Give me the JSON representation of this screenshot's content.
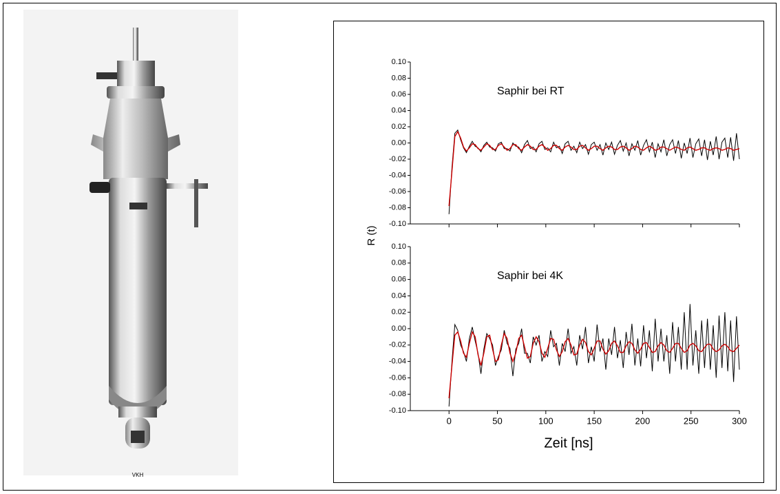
{
  "photo_caption": "VKH",
  "chart_data": [
    {
      "type": "line",
      "annotation": "Saphir bei RT",
      "ylabel": "R (t)",
      "xlim": [
        -40,
        300
      ],
      "xticks": [
        0,
        50,
        100,
        150,
        200,
        250,
        300
      ],
      "ylim": [
        -0.1,
        0.1
      ],
      "yticks": [
        {
          "value": -0.1,
          "label": "-0.10"
        },
        -0.08,
        -0.06,
        -0.04,
        -0.02,
        {
          "value": 0,
          "label": "0.00"
        },
        0.02,
        0.04,
        0.06,
        0.08,
        {
          "value": 0.1,
          "label": "0.10"
        }
      ],
      "x": [
        0,
        3,
        6,
        9,
        12,
        15,
        18,
        21,
        24,
        27,
        30,
        33,
        36,
        39,
        42,
        45,
        48,
        51,
        54,
        57,
        60,
        63,
        66,
        69,
        72,
        75,
        78,
        81,
        84,
        87,
        90,
        93,
        96,
        99,
        102,
        105,
        108,
        111,
        114,
        117,
        120,
        123,
        126,
        129,
        132,
        135,
        138,
        141,
        144,
        147,
        150,
        153,
        156,
        159,
        162,
        165,
        168,
        171,
        174,
        177,
        180,
        183,
        186,
        189,
        192,
        195,
        198,
        201,
        204,
        207,
        210,
        213,
        216,
        219,
        222,
        225,
        228,
        231,
        234,
        237,
        240,
        243,
        246,
        249,
        252,
        255,
        258,
        261,
        264,
        267,
        270,
        273,
        276,
        279,
        282,
        285,
        288,
        291,
        294,
        297,
        300
      ],
      "series": [
        {
          "color": "#000000",
          "values": [
            -0.088,
            -0.03,
            0.012,
            0.016,
            0.004,
            -0.006,
            -0.012,
            -0.004,
            0.002,
            -0.004,
            -0.006,
            -0.011,
            -0.003,
            0.001,
            -0.005,
            -0.006,
            -0.01,
            -0.001,
            0.001,
            -0.007,
            -0.007,
            -0.01,
            0.0,
            -0.004,
            -0.005,
            -0.012,
            -0.002,
            0.003,
            -0.007,
            -0.005,
            -0.011,
            -0.001,
            0.002,
            -0.008,
            -0.006,
            -0.011,
            0.001,
            -0.006,
            -0.004,
            -0.013,
            -0.001,
            0.002,
            -0.009,
            -0.004,
            -0.012,
            0.001,
            -0.007,
            -0.002,
            -0.014,
            -0.002,
            0.001,
            -0.009,
            -0.002,
            -0.015,
            0.0,
            -0.008,
            0.001,
            -0.014,
            -0.003,
            0.003,
            -0.01,
            0.0,
            -0.016,
            -0.001,
            -0.009,
            0.003,
            -0.015,
            -0.003,
            0.004,
            -0.011,
            0.001,
            -0.018,
            -0.001,
            -0.011,
            0.004,
            -0.016,
            -0.002,
            0.004,
            -0.013,
            0.003,
            -0.019,
            0.0,
            -0.013,
            0.006,
            -0.018,
            -0.001,
            0.005,
            -0.016,
            0.004,
            -0.021,
            0.002,
            -0.015,
            0.008,
            -0.02,
            0.001,
            0.006,
            -0.018,
            0.007,
            -0.022,
            0.012,
            -0.02
          ]
        },
        {
          "color": "#cc0000",
          "values": [
            -0.078,
            -0.035,
            0.008,
            0.014,
            0.006,
            -0.005,
            -0.01,
            -0.006,
            -0.001,
            -0.002,
            -0.007,
            -0.009,
            -0.005,
            -0.001,
            -0.003,
            -0.008,
            -0.008,
            -0.003,
            -0.001,
            -0.005,
            -0.009,
            -0.007,
            -0.002,
            -0.002,
            -0.007,
            -0.009,
            -0.005,
            -0.002,
            -0.004,
            -0.008,
            -0.008,
            -0.004,
            -0.002,
            -0.005,
            -0.009,
            -0.007,
            -0.003,
            -0.003,
            -0.007,
            -0.009,
            -0.005,
            -0.003,
            -0.005,
            -0.008,
            -0.008,
            -0.004,
            -0.003,
            -0.006,
            -0.009,
            -0.007,
            -0.004,
            -0.004,
            -0.007,
            -0.009,
            -0.006,
            -0.004,
            -0.005,
            -0.008,
            -0.008,
            -0.005,
            -0.004,
            -0.006,
            -0.009,
            -0.007,
            -0.004,
            -0.005,
            -0.008,
            -0.009,
            -0.006,
            -0.004,
            -0.006,
            -0.009,
            -0.008,
            -0.005,
            -0.005,
            -0.007,
            -0.009,
            -0.007,
            -0.005,
            -0.006,
            -0.008,
            -0.009,
            -0.006,
            -0.005,
            -0.007,
            -0.009,
            -0.008,
            -0.006,
            -0.006,
            -0.008,
            -0.009,
            -0.007,
            -0.006,
            -0.007,
            -0.009,
            -0.008,
            -0.006,
            -0.007,
            -0.009,
            -0.008,
            -0.007
          ]
        }
      ]
    },
    {
      "type": "line",
      "annotation": "Saphir bei 4K",
      "xlabel": "Zeit  [ns]",
      "xlim": [
        -40,
        300
      ],
      "xticks": [
        0,
        50,
        100,
        150,
        200,
        250,
        300
      ],
      "ylim": [
        -0.1,
        0.1
      ],
      "yticks": [
        {
          "value": -0.1,
          "label": "-0.10"
        },
        -0.08,
        -0.06,
        -0.04,
        -0.02,
        {
          "value": 0,
          "label": "0.00"
        },
        0.02,
        0.04,
        0.06,
        0.08,
        {
          "value": 0.1,
          "label": "0.10"
        }
      ],
      "x": [
        0,
        3,
        6,
        9,
        12,
        15,
        18,
        21,
        24,
        27,
        30,
        33,
        36,
        39,
        42,
        45,
        48,
        51,
        54,
        57,
        60,
        63,
        66,
        69,
        72,
        75,
        78,
        81,
        84,
        87,
        90,
        93,
        96,
        99,
        102,
        105,
        108,
        111,
        114,
        117,
        120,
        123,
        126,
        129,
        132,
        135,
        138,
        141,
        144,
        147,
        150,
        153,
        156,
        159,
        162,
        165,
        168,
        171,
        174,
        177,
        180,
        183,
        186,
        189,
        192,
        195,
        198,
        201,
        204,
        207,
        210,
        213,
        216,
        219,
        222,
        225,
        228,
        231,
        234,
        237,
        240,
        243,
        246,
        249,
        252,
        255,
        258,
        261,
        264,
        267,
        270,
        273,
        276,
        279,
        282,
        285,
        288,
        291,
        294,
        297,
        300
      ],
      "series": [
        {
          "color": "#000000",
          "values": [
            -0.095,
            -0.04,
            0.005,
            -0.002,
            -0.02,
            -0.028,
            -0.04,
            -0.012,
            0.002,
            -0.015,
            -0.03,
            -0.055,
            -0.025,
            -0.006,
            -0.012,
            -0.02,
            -0.045,
            -0.034,
            -0.026,
            -0.002,
            -0.018,
            -0.024,
            -0.058,
            -0.025,
            -0.018,
            0.0,
            -0.03,
            -0.03,
            -0.042,
            -0.01,
            -0.02,
            -0.008,
            -0.04,
            -0.028,
            -0.034,
            -0.002,
            -0.022,
            -0.018,
            -0.045,
            -0.018,
            -0.028,
            0.0,
            -0.03,
            -0.022,
            -0.045,
            -0.008,
            -0.025,
            0.002,
            -0.042,
            -0.022,
            -0.04,
            0.005,
            -0.028,
            -0.012,
            -0.05,
            -0.012,
            -0.032,
            0.002,
            -0.036,
            -0.014,
            -0.048,
            -0.004,
            -0.032,
            0.006,
            -0.045,
            -0.012,
            -0.046,
            0.004,
            -0.036,
            -0.002,
            -0.052,
            0.012,
            -0.04,
            0.0,
            -0.04,
            -0.008,
            -0.055,
            0.008,
            -0.04,
            0.002,
            -0.05,
            0.02,
            -0.05,
            0.03,
            -0.045,
            -0.002,
            -0.055,
            0.01,
            -0.048,
            0.012,
            -0.05,
            0.004,
            -0.06,
            0.016,
            -0.048,
            0.02,
            -0.052,
            0.01,
            -0.065,
            0.015,
            -0.05
          ]
        },
        {
          "color": "#cc0000",
          "values": [
            -0.085,
            -0.045,
            -0.008,
            -0.004,
            -0.015,
            -0.03,
            -0.035,
            -0.018,
            -0.004,
            -0.01,
            -0.032,
            -0.045,
            -0.03,
            -0.01,
            -0.008,
            -0.025,
            -0.04,
            -0.038,
            -0.02,
            -0.006,
            -0.012,
            -0.03,
            -0.04,
            -0.03,
            -0.012,
            -0.008,
            -0.022,
            -0.036,
            -0.034,
            -0.018,
            -0.01,
            -0.016,
            -0.03,
            -0.035,
            -0.024,
            -0.012,
            -0.013,
            -0.026,
            -0.034,
            -0.028,
            -0.016,
            -0.012,
            -0.02,
            -0.032,
            -0.031,
            -0.02,
            -0.013,
            -0.017,
            -0.028,
            -0.032,
            -0.024,
            -0.015,
            -0.015,
            -0.025,
            -0.031,
            -0.027,
            -0.018,
            -0.015,
            -0.021,
            -0.029,
            -0.029,
            -0.021,
            -0.016,
            -0.018,
            -0.026,
            -0.03,
            -0.025,
            -0.018,
            -0.017,
            -0.023,
            -0.029,
            -0.028,
            -0.021,
            -0.017,
            -0.02,
            -0.027,
            -0.029,
            -0.024,
            -0.018,
            -0.018,
            -0.024,
            -0.029,
            -0.027,
            -0.02,
            -0.018,
            -0.021,
            -0.027,
            -0.028,
            -0.023,
            -0.019,
            -0.019,
            -0.025,
            -0.028,
            -0.026,
            -0.021,
            -0.019,
            -0.022,
            -0.027,
            -0.028,
            -0.024,
            -0.02
          ]
        }
      ]
    }
  ]
}
